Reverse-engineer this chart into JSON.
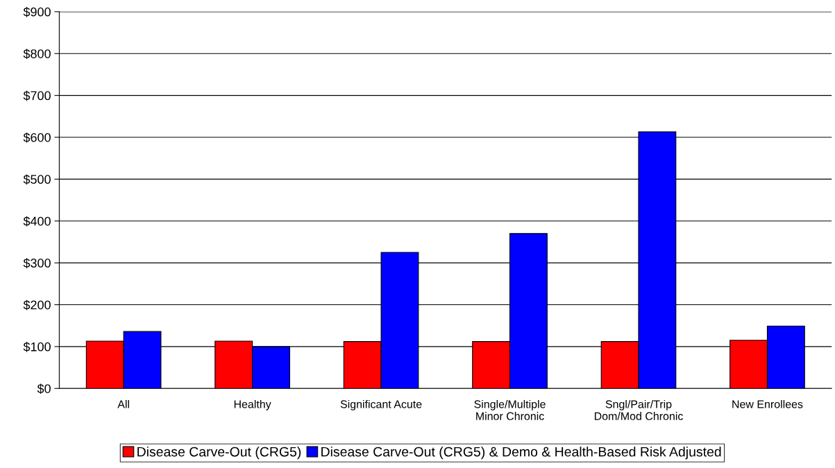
{
  "chart_data": {
    "type": "bar",
    "categories": [
      "All",
      "Healthy",
      "Significant Acute",
      "Single/Multiple\nMinor Chronic",
      "Sngl/Pair/Trip\nDom/Mod Chronic",
      "New Enrollees"
    ],
    "series": [
      {
        "name": "Disease Carve-Out (CRG5)",
        "color": "#ff0000",
        "values": [
          113,
          113,
          112,
          112,
          112,
          115
        ]
      },
      {
        "name": "Disease Carve-Out (CRG5) & Demo & Health-Based Risk Adjusted",
        "color": "#0000ff",
        "values": [
          136,
          100,
          325,
          370,
          613,
          149
        ]
      }
    ],
    "ylim": [
      0,
      900
    ],
    "yticks": [
      {
        "value": 0,
        "label": "$0"
      },
      {
        "value": 100,
        "label": "$100"
      },
      {
        "value": 200,
        "label": "$200"
      },
      {
        "value": 300,
        "label": "$300"
      },
      {
        "value": 400,
        "label": "$400"
      },
      {
        "value": 500,
        "label": "$500"
      },
      {
        "value": 600,
        "label": "$600"
      },
      {
        "value": 700,
        "label": "$700"
      },
      {
        "value": 800,
        "label": "$800"
      },
      {
        "value": 900,
        "label": "$900"
      }
    ],
    "grid": "y",
    "legend": "bottom"
  }
}
